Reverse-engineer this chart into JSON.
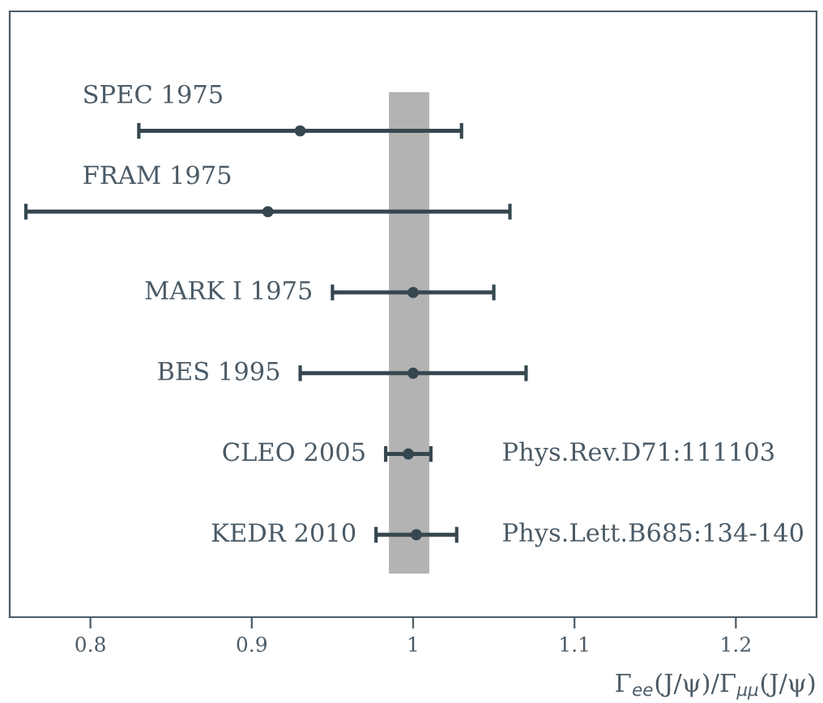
{
  "chart_data": {
    "type": "scatter",
    "orientation": "horizontal",
    "xlabel": "Γ$_{ee}$(J/ψ)/Γ$_{μμ}$(J/ψ)",
    "categories": [
      "SPEC 1975",
      "FRAM 1975",
      "MARK I 1975",
      "BES 1995",
      "CLEO 2005",
      "KEDR 2010"
    ],
    "values": [
      0.93,
      0.91,
      1.0,
      1.0,
      0.997,
      1.002
    ],
    "errors": [
      0.1,
      0.15,
      0.05,
      0.07,
      0.014,
      0.025
    ],
    "color": "#37474f",
    "marker": "circle",
    "xlim": [
      0.75,
      1.25
    ],
    "xticks": [
      0.8,
      0.9,
      1,
      1.1,
      1.2
    ],
    "tick_labels": "x",
    "grid": false,
    "bands": [
      {
        "axis": "x",
        "from": 0.985,
        "to": 1.01,
        "color": "#b3b3b3"
      }
    ],
    "annotations": [
      "Phys.Rev.D71:111103",
      "Phys.Lett.B685:134-140"
    ]
  }
}
